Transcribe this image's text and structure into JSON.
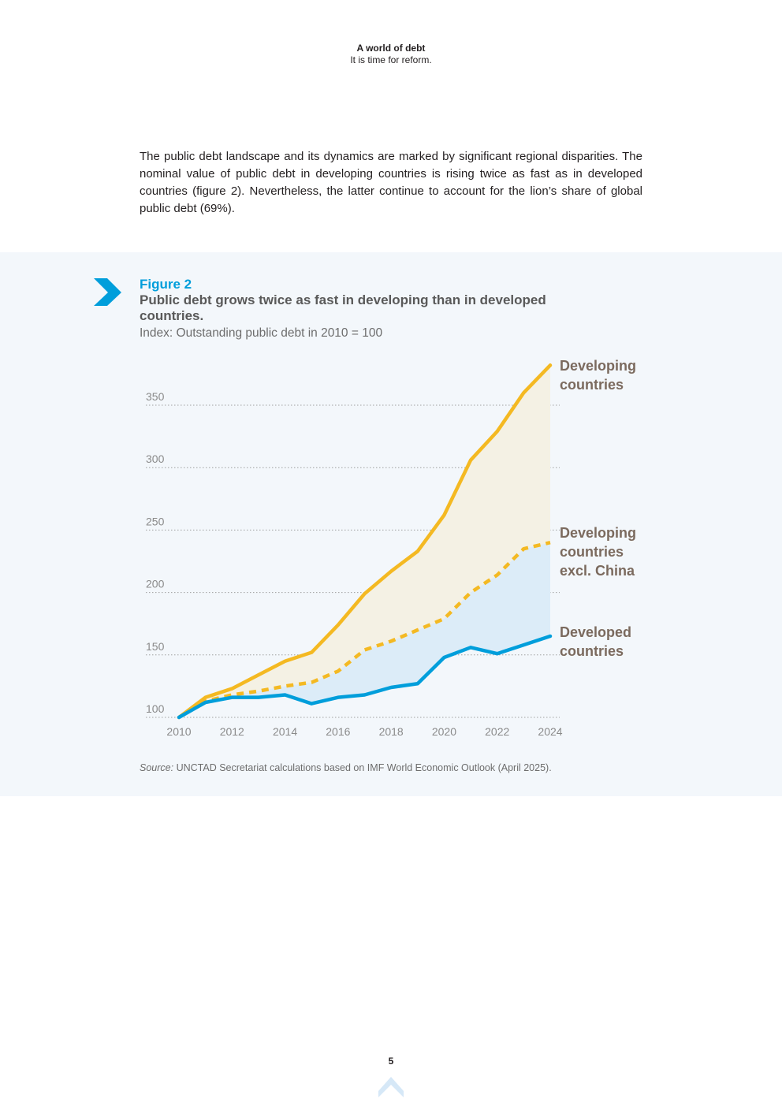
{
  "header": {
    "title": "A world of debt",
    "subtitle": "It is time for reform."
  },
  "intro_text": "The public debt landscape and its dynamics are marked by significant regional disparities. The nominal value of public debt in developing countries is rising twice as fast as in developed countries (figure 2). Nevertheless, the latter continue to account for the lion’s share of global public debt (69%).",
  "figure": {
    "label": "Figure 2",
    "title": "Public debt grows twice as fast in developing than in developed countries.",
    "subtitle": "Index: Outstanding public debt in 2010 = 100"
  },
  "chart_data": {
    "type": "line",
    "x": [
      2010,
      2011,
      2012,
      2013,
      2014,
      2015,
      2016,
      2017,
      2018,
      2019,
      2020,
      2021,
      2022,
      2023,
      2024
    ],
    "x_ticks": [
      "2010",
      "2012",
      "2014",
      "2016",
      "2018",
      "2020",
      "2022",
      "2024"
    ],
    "y_ticks": [
      "100",
      "150",
      "200",
      "250",
      "300",
      "350"
    ],
    "ylim": [
      100,
      385
    ],
    "grid": true,
    "series": [
      {
        "name": "Developing countries",
        "color": "#f4b922",
        "style": "solid",
        "values": [
          100,
          116,
          123,
          134,
          145,
          152,
          174,
          199,
          217,
          233,
          262,
          306,
          329,
          360,
          382
        ]
      },
      {
        "name": "Developing countries excl. China",
        "color": "#f4b922",
        "style": "dashed",
        "values": [
          100,
          113,
          118,
          121,
          125,
          128,
          137,
          154,
          161,
          170,
          179,
          200,
          214,
          235,
          240
        ]
      },
      {
        "name": "Developed countries",
        "color": "#009edb",
        "style": "solid",
        "values": [
          100,
          112,
          116,
          116,
          118,
          111,
          116,
          118,
          124,
          127,
          148,
          156,
          151,
          158,
          165
        ]
      }
    ],
    "labels": [
      {
        "lines": [
          "Developing",
          "countries"
        ]
      },
      {
        "lines": [
          "Developing",
          "countries",
          "excl. China"
        ]
      },
      {
        "lines": [
          "Developed",
          "countries"
        ]
      }
    ],
    "fills": {
      "upper": "#f4f1e4",
      "lower": "#dcecf8"
    }
  },
  "source": {
    "prefix": "Source:",
    "text": " UNCTAD Secretariat calculations based on IMF World Economic Outlook (April 2025)."
  },
  "page_number": "5",
  "icons": {
    "figure_marker": "chevron-right-icon",
    "back_to_top": "chevron-up-icon"
  }
}
